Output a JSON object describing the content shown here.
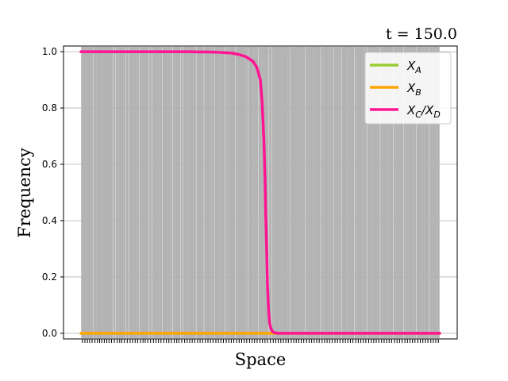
{
  "chart_data": {
    "type": "line",
    "title": "t = 150.0",
    "xlabel": "Space",
    "ylabel": "Frequency",
    "xlim": [
      0,
      1
    ],
    "ylim": [
      -0.02,
      1.02
    ],
    "y_ticks": [
      "0.0",
      "0.2",
      "0.4",
      "0.6",
      "0.8",
      "1.0"
    ],
    "y_tick_values": [
      0.0,
      0.2,
      0.4,
      0.6,
      0.8,
      1.0
    ],
    "grid": "horizontal",
    "legend_position": "top-right",
    "colors": {
      "XA": "#9acd32",
      "XB": "#ffa500",
      "XCD": "#ff1493",
      "background_bars": "#b3b3b3"
    },
    "series": [
      {
        "name": "X_A",
        "legend_main": "X",
        "legend_sub": "A",
        "x": [
          0.0,
          0.5,
          1.0
        ],
        "values": [
          0.0,
          0.0,
          0.0
        ]
      },
      {
        "name": "X_B",
        "legend_main": "X",
        "legend_sub": "B",
        "x": [
          0.0,
          0.5,
          1.0
        ],
        "values": [
          0.0,
          0.0,
          0.0
        ]
      },
      {
        "name": "X_C/X_D",
        "legend_main1": "X",
        "legend_sub1": "C",
        "legend_sep": "/",
        "legend_main2": "X",
        "legend_sub2": "D",
        "x": [
          0.0,
          0.2,
          0.3,
          0.38,
          0.42,
          0.44,
          0.46,
          0.48,
          0.49,
          0.5,
          0.505,
          0.51,
          0.513,
          0.515,
          0.518,
          0.52,
          0.523,
          0.526,
          0.53,
          0.535,
          0.54,
          0.55,
          0.6,
          0.8,
          1.0
        ],
        "values": [
          1.0,
          1.0,
          1.0,
          0.998,
          0.995,
          0.99,
          0.982,
          0.965,
          0.945,
          0.9,
          0.82,
          0.68,
          0.55,
          0.42,
          0.28,
          0.17,
          0.08,
          0.035,
          0.015,
          0.005,
          0.002,
          0.0,
          0.0,
          0.0,
          0.0
        ]
      }
    ],
    "background_bar_positions": [
      0.004,
      0.011,
      0.018,
      0.024,
      0.031,
      0.039,
      0.046,
      0.052,
      0.058,
      0.065,
      0.072,
      0.078,
      0.085,
      0.093,
      0.101,
      0.108,
      0.114,
      0.121,
      0.129,
      0.137,
      0.144,
      0.151,
      0.158,
      0.166,
      0.173,
      0.179,
      0.186,
      0.194,
      0.202,
      0.209,
      0.216,
      0.223,
      0.231,
      0.238,
      0.245,
      0.252,
      0.26,
      0.267,
      0.273,
      0.281,
      0.289,
      0.296,
      0.303,
      0.31,
      0.317,
      0.325,
      0.332,
      0.339,
      0.347,
      0.354,
      0.361,
      0.368,
      0.376,
      0.383,
      0.39,
      0.397,
      0.405,
      0.412,
      0.419,
      0.426,
      0.434,
      0.441,
      0.448,
      0.455,
      0.462,
      0.47,
      0.477,
      0.484,
      0.491,
      0.499,
      0.506,
      0.513,
      0.52,
      0.528,
      0.536,
      0.543,
      0.55,
      0.557,
      0.564,
      0.571,
      0.578,
      0.586,
      0.593,
      0.6,
      0.607,
      0.614,
      0.621,
      0.629,
      0.636,
      0.643,
      0.65,
      0.657,
      0.664,
      0.672,
      0.679,
      0.686,
      0.693,
      0.7,
      0.708,
      0.715,
      0.722,
      0.73,
      0.737,
      0.744,
      0.751,
      0.758,
      0.766,
      0.773,
      0.78,
      0.787,
      0.794,
      0.802,
      0.809,
      0.816,
      0.823,
      0.83,
      0.838,
      0.845,
      0.852,
      0.859,
      0.866,
      0.874,
      0.881,
      0.888,
      0.895,
      0.903,
      0.91,
      0.917,
      0.924,
      0.931,
      0.939,
      0.946,
      0.953,
      0.96,
      0.967,
      0.975,
      0.982,
      0.989,
      0.996
    ]
  }
}
